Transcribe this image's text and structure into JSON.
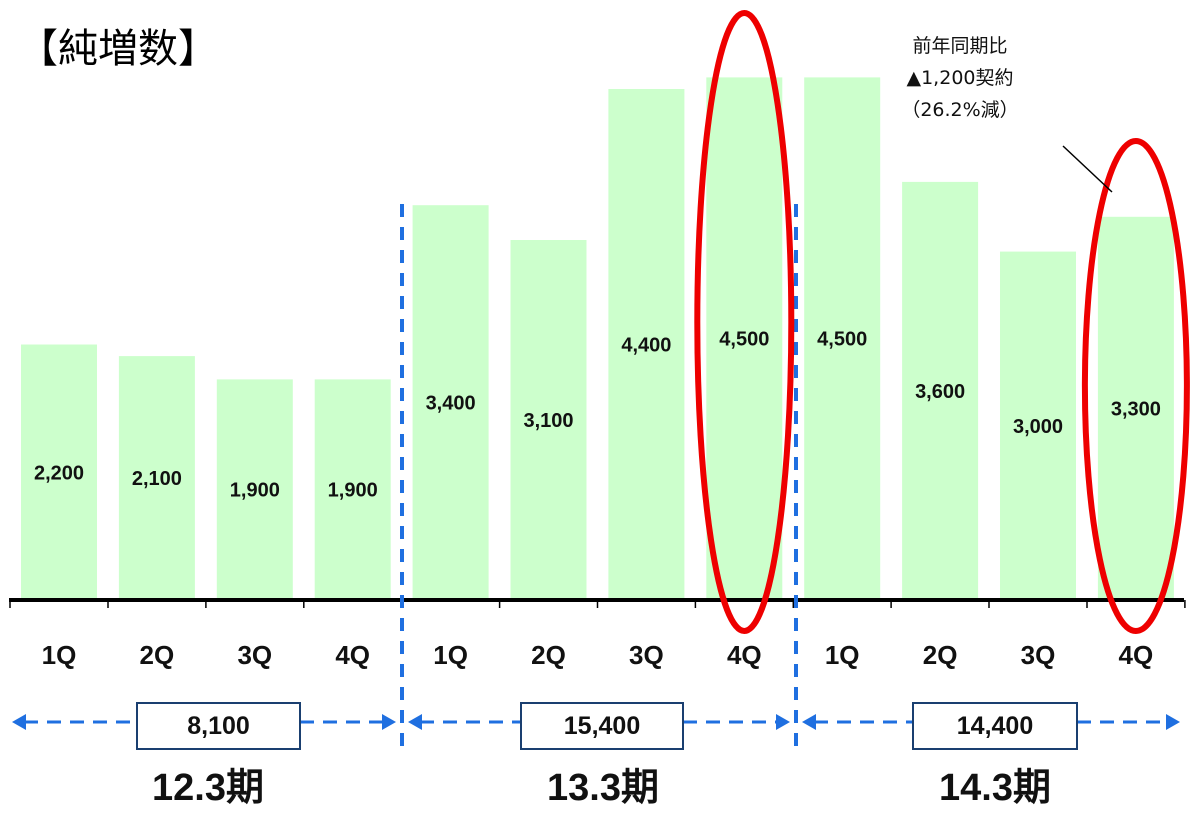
{
  "title": "【純増数】",
  "annotation": {
    "line1": "前年同期比",
    "line2": "▲1,200契約",
    "line3": "（26.2%減）"
  },
  "colors": {
    "bar": "#ccffcc",
    "highlight": "#ee0000",
    "divider": "#1f6fe0",
    "axis": "#000000"
  },
  "chart_data": {
    "type": "bar",
    "categories": [
      "1Q",
      "2Q",
      "3Q",
      "4Q",
      "1Q",
      "2Q",
      "3Q",
      "4Q",
      "1Q",
      "2Q",
      "3Q",
      "4Q"
    ],
    "values": [
      2200,
      2100,
      1900,
      1900,
      3400,
      3100,
      4400,
      4500,
      4500,
      3600,
      3000,
      3300
    ],
    "labels": [
      "2,200",
      "2,100",
      "1,900",
      "1,900",
      "3,400",
      "3,100",
      "4,400",
      "4,500",
      "4,500",
      "3,600",
      "3,000",
      "3,300"
    ],
    "ylim": [
      0,
      4650
    ],
    "grid": false,
    "title": "【純増数】",
    "xlabel": "",
    "ylabel": "",
    "periods": [
      {
        "name": "12.3期",
        "total": "8,100"
      },
      {
        "name": "13.3期",
        "total": "15,400"
      },
      {
        "name": "14.3期",
        "total": "14,400"
      }
    ],
    "highlighted_indices": [
      7,
      11
    ]
  }
}
